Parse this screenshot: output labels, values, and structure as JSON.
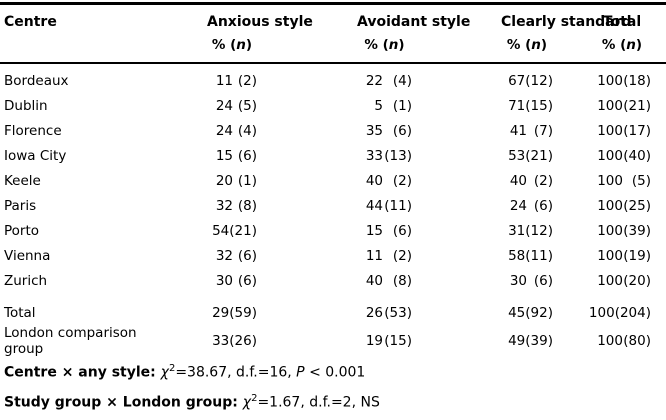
{
  "colors": {
    "text": "#000000",
    "background": "#ffffff",
    "rule": "#000000"
  },
  "table": {
    "columns": [
      "Centre",
      "Anxious style",
      "Avoidant style",
      "Clearly standard",
      "Total"
    ],
    "subheader": {
      "prefix": "% (",
      "n": "n",
      "suffix": ")"
    },
    "rows": [
      {
        "centre": "Bordeaux",
        "cells": [
          [
            "11",
            "(2)"
          ],
          [
            "22",
            "(4)"
          ],
          [
            "67",
            "(12)"
          ],
          [
            "100",
            "(18)"
          ]
        ]
      },
      {
        "centre": "Dublin",
        "cells": [
          [
            "24",
            "(5)"
          ],
          [
            "5",
            "(1)"
          ],
          [
            "71",
            "(15)"
          ],
          [
            "100",
            "(21)"
          ]
        ]
      },
      {
        "centre": "Florence",
        "cells": [
          [
            "24",
            "(4)"
          ],
          [
            "35",
            "(6)"
          ],
          [
            "41",
            "(7)"
          ],
          [
            "100",
            "(17)"
          ]
        ]
      },
      {
        "centre": "Iowa City",
        "cells": [
          [
            "15",
            "(6)"
          ],
          [
            "33",
            "(13)"
          ],
          [
            "53",
            "(21)"
          ],
          [
            "100",
            "(40)"
          ]
        ]
      },
      {
        "centre": "Keele",
        "cells": [
          [
            "20",
            "(1)"
          ],
          [
            "40",
            "(2)"
          ],
          [
            "40",
            "(2)"
          ],
          [
            "100",
            "(5)"
          ]
        ]
      },
      {
        "centre": "Paris",
        "cells": [
          [
            "32",
            "(8)"
          ],
          [
            "44",
            "(11)"
          ],
          [
            "24",
            "(6)"
          ],
          [
            "100",
            "(25)"
          ]
        ]
      },
      {
        "centre": "Porto",
        "cells": [
          [
            "54",
            "(21)"
          ],
          [
            "15",
            "(6)"
          ],
          [
            "31",
            "(12)"
          ],
          [
            "100",
            "(39)"
          ]
        ]
      },
      {
        "centre": "Vienna",
        "cells": [
          [
            "32",
            "(6)"
          ],
          [
            "11",
            "(2)"
          ],
          [
            "58",
            "(11)"
          ],
          [
            "100",
            "(19)"
          ]
        ]
      },
      {
        "centre": "Zurich",
        "cells": [
          [
            "30",
            "(6)"
          ],
          [
            "40",
            "(8)"
          ],
          [
            "30",
            "(6)"
          ],
          [
            "100",
            "(20)"
          ]
        ]
      }
    ],
    "summary_rows": [
      {
        "centre": "Total",
        "cells": [
          [
            "29",
            "(59)"
          ],
          [
            "26",
            "(53)"
          ],
          [
            "45",
            "(92)"
          ],
          [
            "100",
            "(204)"
          ]
        ]
      },
      {
        "centre": "London comparison group",
        "cells": [
          [
            "33",
            "(26)"
          ],
          [
            "19",
            "(15)"
          ],
          [
            "49",
            "(39)"
          ],
          [
            "100",
            "(80)"
          ]
        ]
      }
    ]
  },
  "footnotes": [
    {
      "label": "Centre × any style: ",
      "chi": "χ",
      "sup": "2",
      "stats": "=38.67, d.f.=16, ",
      "p": "P",
      "after_p": " < 0.001"
    },
    {
      "label": "Study group × London group: ",
      "chi": "χ",
      "sup": "2",
      "stats": "=1.67, d.f.=2, NS",
      "p": "",
      "after_p": ""
    }
  ]
}
